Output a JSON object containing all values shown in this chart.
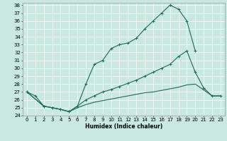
{
  "xlabel": "Humidex (Indice chaleur)",
  "bg_color": "#c8e8e0",
  "grid_color": "#ffffff",
  "line_color": "#1a6b5a",
  "xlim": [
    -0.5,
    23.5
  ],
  "ylim": [
    24,
    38.3
  ],
  "yticks": [
    24,
    25,
    26,
    27,
    28,
    29,
    30,
    31,
    32,
    33,
    34,
    35,
    36,
    37,
    38
  ],
  "xticks": [
    0,
    1,
    2,
    3,
    4,
    5,
    6,
    7,
    8,
    9,
    10,
    11,
    12,
    13,
    14,
    15,
    16,
    17,
    18,
    19,
    20,
    21,
    22,
    23
  ],
  "c1x": [
    0,
    1,
    2,
    3,
    4,
    5,
    6,
    7,
    8,
    9,
    10,
    11,
    12,
    13,
    14,
    15,
    16,
    17,
    18,
    19,
    20
  ],
  "c1y": [
    27.0,
    26.5,
    25.2,
    25.0,
    24.8,
    24.5,
    25.2,
    28.0,
    30.5,
    31.0,
    32.5,
    33.0,
    33.2,
    33.8,
    35.0,
    36.0,
    37.0,
    38.0,
    37.5,
    36.0,
    32.2
  ],
  "c2x": [
    0,
    2,
    3,
    4,
    5,
    6,
    7,
    8,
    9,
    10,
    11,
    12,
    13,
    14,
    15,
    16,
    17,
    18,
    19,
    20,
    21,
    22,
    23
  ],
  "c2y": [
    27.0,
    25.2,
    25.0,
    24.8,
    24.5,
    25.2,
    26.0,
    26.5,
    27.0,
    27.3,
    27.7,
    28.1,
    28.5,
    29.0,
    29.5,
    30.0,
    30.5,
    31.5,
    32.2,
    29.5,
    27.5,
    26.5,
    26.5
  ],
  "c3x": [
    0,
    2,
    3,
    4,
    5,
    6,
    7,
    8,
    9,
    10,
    11,
    12,
    13,
    14,
    15,
    16,
    17,
    18,
    19,
    20,
    22,
    23
  ],
  "c3y": [
    27.0,
    25.2,
    25.0,
    24.8,
    24.5,
    25.0,
    25.4,
    25.7,
    25.9,
    26.1,
    26.3,
    26.5,
    26.7,
    26.9,
    27.0,
    27.2,
    27.4,
    27.6,
    27.9,
    28.0,
    26.5,
    26.5
  ],
  "tick_fontsize": 5.0,
  "xlabel_fontsize": 5.5,
  "linewidth": 0.8,
  "markersize": 2.5
}
